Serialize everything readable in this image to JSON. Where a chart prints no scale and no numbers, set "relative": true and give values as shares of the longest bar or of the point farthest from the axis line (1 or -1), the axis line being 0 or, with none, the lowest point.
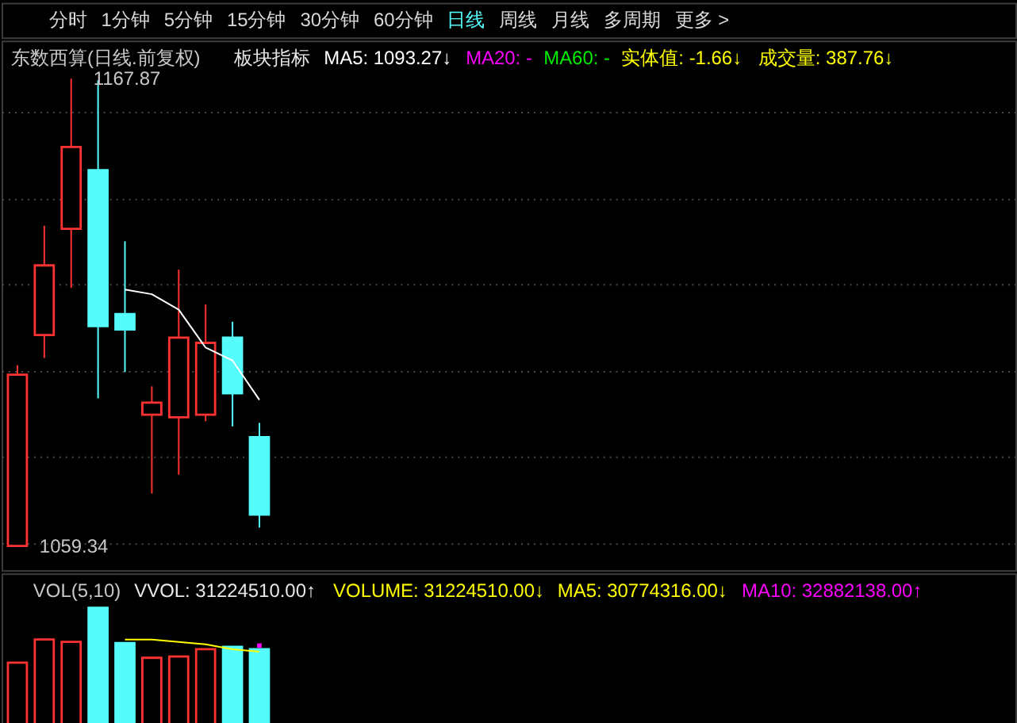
{
  "chart_data": [
    {
      "type": "other",
      "annotations": [
        "分时",
        "1分钟",
        "5分钟",
        "15分钟",
        "30分钟",
        "60分钟",
        "日线",
        "周线",
        "月线",
        "多周期",
        "更多 >"
      ],
      "colors": [
        "#d8d8d8",
        "#d8d8d8",
        "#d8d8d8",
        "#d8d8d8",
        "#d8d8d8",
        "#d8d8d8",
        "#54fcfc",
        "#d8d8d8",
        "#d8d8d8",
        "#d8d8d8",
        "#d8d8d8"
      ]
    },
    {
      "type": "candlestick",
      "title": "东数西算(日线.前复权)",
      "subtitle": "板块指标",
      "categories": [
        null,
        null,
        null,
        null,
        null,
        null,
        null,
        null,
        null,
        null
      ],
      "ohlc": [
        [
          1059.34,
          1101.3,
          1059.34,
          1099.1
        ],
        [
          1108.3,
          1133.7,
          1103.0,
          1124.5
        ],
        [
          1133.0,
          1167.87,
          1119.3,
          1152.0
        ],
        [
          1146.6,
          1167.5,
          1093.6,
          1110.4
        ],
        [
          1113.2,
          1130.1,
          1099.7,
          1109.6
        ],
        [
          1089.8,
          1096.4,
          1071.5,
          1092.6
        ],
        [
          1089.2,
          1123.5,
          1075.9,
          1107.7
        ],
        [
          1089.8,
          1115.4,
          1088.3,
          1106.5
        ],
        [
          1107.7,
          1111.4,
          1087.1,
          1094.8
        ],
        [
          1084.6,
          1087.9,
          1063.6,
          1066.6
        ]
      ],
      "colors": [
        "#ff3232",
        "#ff3232",
        "#ff3232",
        "#54fcfc",
        "#54fcfc",
        "#ff3232",
        "#ff3232",
        "#ff3232",
        "#54fcfc",
        "#54fcfc"
      ],
      "series": [
        {
          "name": "MA5: 1093.27↓",
          "type": "line",
          "color": "#ffffff",
          "values": [
            null,
            null,
            null,
            null,
            1118.9,
            1117.8,
            1114.2,
            1105.4,
            1102.4,
            1093.27
          ]
        },
        {
          "name": "MA20: -",
          "type": "line",
          "color": "#ff00ff",
          "values": [
            null,
            null,
            null,
            null,
            null,
            null,
            null,
            null,
            null,
            null
          ]
        },
        {
          "name": "MA60: -",
          "type": "line",
          "color": "#00ee00",
          "values": [
            null,
            null,
            null,
            null,
            null,
            null,
            null,
            null,
            null,
            null
          ]
        }
      ],
      "annotations": [
        "1167.87",
        "1059.34",
        "实体值: -1.66↓",
        "成交量: 387.76↓"
      ],
      "ylim": [
        1053.7,
        1176.7
      ],
      "yticks": [
        {
          "value": 1060,
          "label": null
        },
        {
          "value": 1080,
          "label": null
        },
        {
          "value": 1100,
          "label": null
        },
        {
          "value": 1120,
          "label": null
        },
        {
          "value": 1140,
          "label": null
        },
        {
          "value": 1160,
          "label": null
        }
      ],
      "grid": "y",
      "tick_labels": false,
      "legend": "top"
    },
    {
      "type": "bar",
      "title": "VOL(5,10)",
      "subtitle": "VVOL: 31224510.00↑",
      "relative": true,
      "categories": [
        null,
        null,
        null,
        null,
        null,
        null,
        null,
        null,
        null,
        null
      ],
      "series": [
        {
          "type": "bar",
          "values": [
            0.55,
            0.74,
            0.72,
            1,
            0.71,
            0.59,
            0.6,
            0.66,
            0.68,
            0.66
          ],
          "colors": [
            "#ff3232",
            "#ff3232",
            "#ff3232",
            "#54fcfc",
            "#54fcfc",
            "#ff3232",
            "#ff3232",
            "#ff3232",
            "#54fcfc",
            "#54fcfc"
          ]
        },
        {
          "name": "MA5: 30774316.00↓",
          "type": "line",
          "color": "#ffff00",
          "values": [
            null,
            null,
            null,
            null,
            0.74,
            0.74,
            0.72,
            0.7,
            0.66,
            0.64
          ]
        },
        {
          "name": "MA10: 32882138.00↑",
          "type": "line",
          "color": "#ff00ff",
          "marker": "square",
          "values": [
            null,
            null,
            null,
            null,
            null,
            null,
            null,
            null,
            null,
            0.69
          ]
        }
      ],
      "annotations": [
        "VOLUME: 31224510.00↓"
      ],
      "legend": "top right"
    }
  ]
}
